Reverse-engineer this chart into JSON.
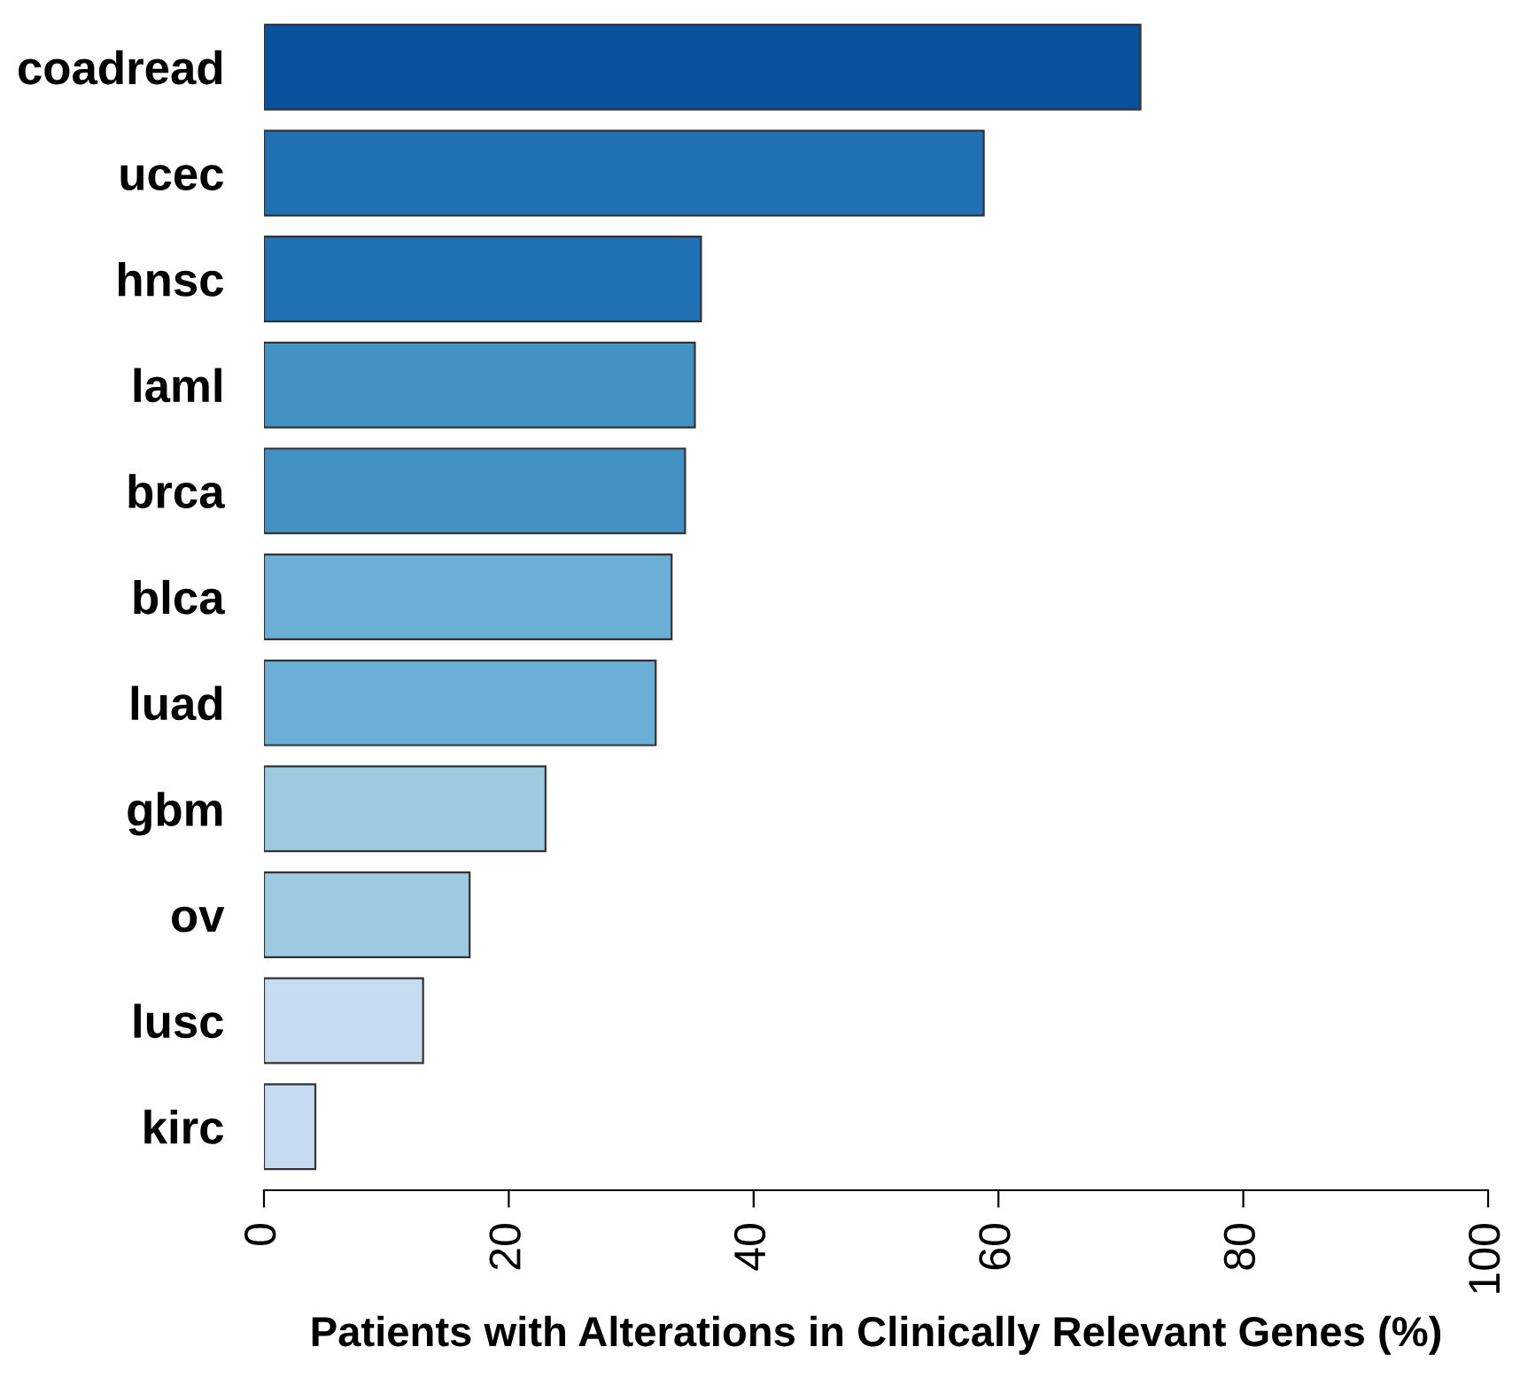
{
  "chart_data": {
    "type": "bar",
    "orientation": "horizontal",
    "xlabel": "Patients with Alterations in Clinically Relevant Genes (%)",
    "categories": [
      "coadread",
      "ucec",
      "hnsc",
      "laml",
      "brca",
      "blca",
      "luad",
      "gbm",
      "ov",
      "lusc",
      "kirc"
    ],
    "values": [
      71.6,
      58.8,
      35.7,
      35.2,
      34.4,
      33.3,
      32.0,
      23.0,
      16.8,
      13.0,
      4.2
    ],
    "colors": [
      "#08519c",
      "#2171b5",
      "#2171b5",
      "#4292c6",
      "#4292c6",
      "#6baed6",
      "#6baed6",
      "#9ecae1",
      "#9ecae1",
      "#c6dbef",
      "#c6dbef"
    ],
    "xlim": [
      0,
      100
    ],
    "xticks": [
      0,
      20,
      40,
      60,
      80,
      100
    ],
    "grid": false,
    "legend": false
  }
}
